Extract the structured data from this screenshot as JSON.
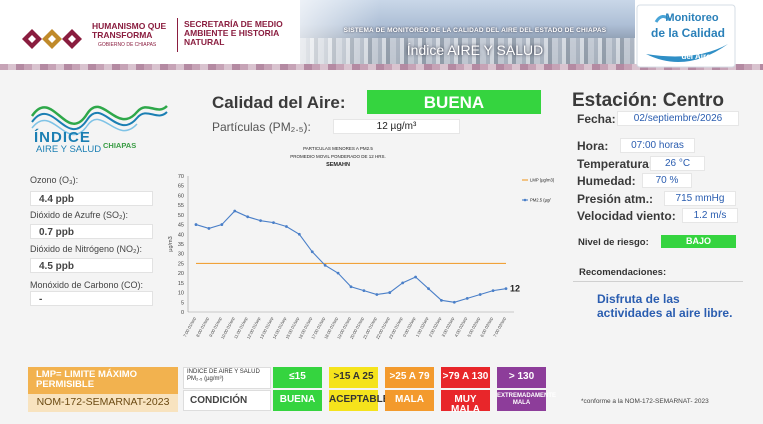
{
  "header": {
    "logo_left_title": "HUMANISMO QUE TRANSFORMA",
    "logo_left_sub": "GOBIERNO DE CHIAPAS",
    "secretaria": "SECRETARÍA DE MEDIO AMBIENTE E HISTORIA NATURAL",
    "system_title": "SISTEMA DE MONITOREO DE LA CALIDAD DEL AIRE DEL ESTADO DE CHIAPAS",
    "index_title": "Índice AIRE Y SALUD",
    "monitoreo_logo": [
      "Monitoreo",
      "de la Calidad",
      "del Aire"
    ]
  },
  "left": {
    "indice_logo": {
      "line1": "ÍNDICE",
      "line2": "AIRE Y SALUD",
      "chiapas": "CHIAPAS"
    },
    "pollutants": [
      {
        "label": "Ozono (O₃):",
        "value": "4.4 ppb"
      },
      {
        "label": "Dióxido de Azufre (SO₂):",
        "value": "0.7 ppb"
      },
      {
        "label": "Dióxido de Nitrógeno (NO₂):",
        "value": "4.5 ppb"
      },
      {
        "label": "Monóxido de Carbono (CO):",
        "value": "-"
      }
    ]
  },
  "quality": {
    "label": "Calidad del Aire:",
    "value": "BUENA",
    "value_color": "#35d43f",
    "pm_label": "Partículas (PM₂.₅):",
    "pm_value": "12 µg/m³"
  },
  "station": {
    "title": "Estación: Centro",
    "fields": [
      {
        "label": "Fecha:",
        "value": "02/septiembre/2026"
      },
      {
        "label": "Hora:",
        "value": "07:00 horas"
      },
      {
        "label": "Temperatura:",
        "value": "26 °C"
      },
      {
        "label": "Humedad:",
        "value": "70 %"
      },
      {
        "label": "Presión atm.:",
        "value": "715 mmHg"
      },
      {
        "label": "Velocidad viento:",
        "value": "1.2 m/s"
      }
    ],
    "riesgo_label": "Nivel de riesgo:",
    "riesgo_value": "BAJO",
    "reco_label": "Recomendaciones:",
    "reco_text": "Disfruta de las actividades al aire libre."
  },
  "chart_data": {
    "type": "line",
    "title": "PARTICULAS MENORES A PM2.5",
    "subtitle": "PROMEDIO MOVIL PONDERADO DE 12 HRS.",
    "subtitle2": "SEMAHN",
    "ylabel": "µg/m3",
    "ylim": [
      0,
      70
    ],
    "yticks": [
      0,
      5,
      10,
      15,
      20,
      25,
      30,
      35,
      40,
      45,
      50,
      55,
      60,
      65,
      70
    ],
    "grid": false,
    "legend_position": "right",
    "categories": [
      "7:00 01/sep",
      "8:00 01/sep",
      "9:00 01/sep",
      "10:00 01/sep",
      "11:00 01/sep",
      "12:00 01/sep",
      "13:00 01/sep",
      "14:00 01/sep",
      "15:00 01/sep",
      "16:00 01/sep",
      "17:00 01/sep",
      "18:00 01/sep",
      "19:00 01/sep",
      "20:00 01/sep",
      "21:00 01/sep",
      "22:00 01/sep",
      "23:00 01/sep",
      "0:00 02/sep",
      "1:00 02/sep",
      "2:00 02/sep",
      "3:00 02/sep",
      "4:00 02/sep",
      "5:00 02/sep",
      "6:00 02/sep",
      "7:00 02/sep"
    ],
    "series": [
      {
        "name": "LMP (µg/m3)",
        "color": "#f0a23a",
        "values": [
          25,
          25,
          25,
          25,
          25,
          25,
          25,
          25,
          25,
          25,
          25,
          25,
          25,
          25,
          25,
          25,
          25,
          25,
          25,
          25,
          25,
          25,
          25,
          25,
          25
        ]
      },
      {
        "name": "PM2.5 (µg/",
        "color": "#4a7fc8",
        "values": [
          45,
          43,
          45,
          52,
          49,
          47,
          46,
          44,
          40,
          31,
          24,
          20,
          13,
          11,
          9,
          10,
          15,
          18,
          12,
          6,
          5,
          7,
          9,
          11,
          12
        ]
      }
    ],
    "last_value_label": "12"
  },
  "bottom": {
    "lmp_title": "LMP= LIMITE MÁXIMO PERMISIBLE",
    "lmp_norm": "NOM-172-SEMARNAT-2023",
    "scale_head": "INDICE DE AIRE Y SALUD PM₂.₅ (µg/m³)",
    "scale_cond": "CONDICIÓN",
    "ranges": [
      {
        "range": "≤15",
        "cond": "BUENA",
        "color": "#35d43f",
        "text": "#ffffff"
      },
      {
        "range": ">15 A 25",
        "cond": "ACEPTABLE",
        "color": "#f5e31c",
        "text": "#333333"
      },
      {
        "range": ">25 A 79",
        "cond": "MALA",
        "color": "#f39a2d",
        "text": "#ffffff"
      },
      {
        "range": ">79 A 130",
        "cond": "MUY MALA",
        "color": "#e8262a",
        "text": "#ffffff"
      },
      {
        "range": "> 130",
        "cond": "EXTREMADAMENTE MALA",
        "color": "#8d3d9a",
        "text": "#ffffff"
      }
    ],
    "conforme": "*conforme a la NOM-172-SEMARNAT- 2023"
  }
}
